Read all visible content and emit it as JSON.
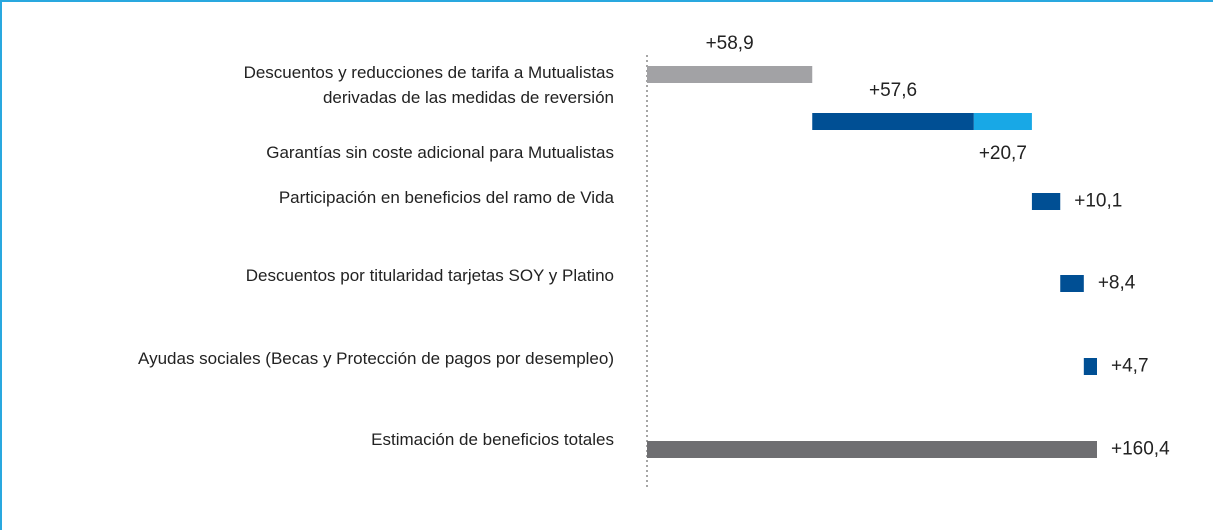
{
  "chart_data": {
    "type": "waterfall",
    "categories": [
      "Descuentos y reducciones de tarifa a Mutualistas\nderivadas de las medidas de reversión",
      "Garantías sin coste adicional para Mutualistas",
      "Participación en beneficios del ramo de Vida",
      "Descuentos por titularidad tarjetas SOY y Platino",
      "Ayudas sociales (Becas y Protección de pagos por desempleo)",
      "Estimación de beneficios totales"
    ],
    "series": [
      {
        "values": [
          58.9,
          57.6,
          10.1,
          8.4,
          4.7,
          160.4
        ],
        "value_labels": [
          "+58,9",
          "+57,6",
          "+10,1",
          "+8,4",
          "+4,7",
          "+160,4"
        ],
        "colors": [
          "#a2a2a5",
          "#004f94",
          "#004f94",
          "#004f94",
          "#004f94",
          "#6e6e71"
        ]
      },
      {
        "values": [
          null,
          20.7,
          null,
          null,
          null,
          null
        ],
        "value_labels": [
          null,
          "+20,7",
          null,
          null,
          null,
          null
        ],
        "color": "#18a8e6"
      }
    ]
  }
}
